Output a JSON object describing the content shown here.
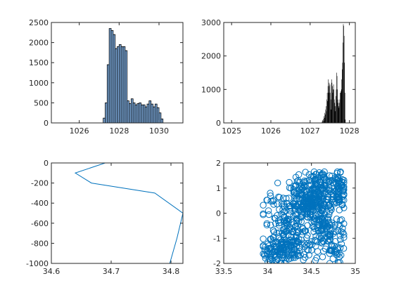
{
  "chart_data": [
    {
      "type": "bar",
      "title": "",
      "xlabel": "",
      "ylabel": "",
      "xlim": [
        1024.6,
        1031.2
      ],
      "ylim": [
        0,
        2500
      ],
      "xticks": [
        1026,
        1028,
        1030
      ],
      "yticks": [
        0,
        500,
        1000,
        1500,
        2000,
        2500
      ],
      "grid": false,
      "bar_color": "#7aa6d6",
      "edge_color": "#000000",
      "bin_width": 0.1,
      "bin_start": 1027.2,
      "values": [
        120,
        500,
        1450,
        2350,
        2300,
        2200,
        1850,
        1900,
        1950,
        1900,
        1900,
        1800,
        550,
        480,
        600,
        500,
        450,
        480,
        500,
        450,
        450,
        400,
        470,
        550,
        470,
        400,
        470,
        380,
        250,
        100
      ]
    },
    {
      "type": "bar",
      "title": "",
      "xlabel": "",
      "ylabel": "",
      "xlim": [
        1024.8,
        1028.15
      ],
      "ylim": [
        0,
        3000
      ],
      "xticks": [
        1025,
        1026,
        1027,
        1028
      ],
      "yticks": [
        0,
        1000,
        2000,
        3000
      ],
      "grid": false,
      "bar_color": "#000000",
      "bin_width": 0.01,
      "bin_start": 1027.3,
      "values": [
        40,
        80,
        50,
        120,
        60,
        200,
        150,
        300,
        250,
        400,
        500,
        350,
        700,
        900,
        650,
        1100,
        1300,
        900,
        1200,
        1100,
        1150,
        900,
        700,
        400,
        1300,
        1200,
        1100,
        900,
        1000,
        1150,
        1000,
        700,
        600,
        500,
        350,
        800,
        1000,
        1500,
        1400,
        1000,
        700,
        600,
        500,
        450,
        600,
        700,
        900,
        900,
        950,
        1000,
        1300,
        1600,
        1800,
        2400,
        2950,
        2900,
        2600,
        1800,
        900,
        100
      ]
    },
    {
      "type": "line",
      "title": "",
      "xlabel": "",
      "ylabel": "",
      "xlim": [
        34.6,
        34.82
      ],
      "ylim": [
        -1000,
        0
      ],
      "xticks": [
        34.6,
        34.7,
        34.8
      ],
      "yticks": [
        0,
        -200,
        -400,
        -600,
        -800,
        -1000
      ],
      "grid": false,
      "color": "#0072bd",
      "x": [
        34.69,
        34.64,
        34.667,
        34.773,
        34.82,
        34.81,
        34.798
      ],
      "y": [
        0,
        -100,
        -200,
        -300,
        -500,
        -750,
        -1000
      ]
    },
    {
      "type": "scatter",
      "title": "",
      "xlabel": "",
      "ylabel": "",
      "xlim": [
        33.5,
        35
      ],
      "ylim": [
        -2,
        2
      ],
      "xticks": [
        33.5,
        34,
        34.5,
        35
      ],
      "yticks": [
        2,
        1,
        0,
        -1,
        -2
      ],
      "grid": false,
      "color": "#0072bd",
      "marker": "circle",
      "clusters": [
        {
          "cx": 34.05,
          "cy": 0.45,
          "sx": 0.05,
          "sy": 0.25,
          "n": 10
        },
        {
          "cx": 34.1,
          "cy": -1.6,
          "sx": 0.08,
          "sy": 0.25,
          "n": 60
        },
        {
          "cx": 34.2,
          "cy": -0.6,
          "sx": 0.12,
          "sy": 0.5,
          "n": 110
        },
        {
          "cx": 34.3,
          "cy": -1.4,
          "sx": 0.15,
          "sy": 0.3,
          "n": 100
        },
        {
          "cx": 34.5,
          "cy": 0.3,
          "sx": 0.12,
          "sy": 0.3,
          "n": 130
        },
        {
          "cx": 34.4,
          "cy": 0.9,
          "sx": 0.1,
          "sy": 0.3,
          "n": 60
        },
        {
          "cx": 34.6,
          "cy": 1.1,
          "sx": 0.08,
          "sy": 0.3,
          "n": 90
        },
        {
          "cx": 34.65,
          "cy": -0.6,
          "sx": 0.12,
          "sy": 0.4,
          "n": 110
        },
        {
          "cx": 34.8,
          "cy": 0.9,
          "sx": 0.05,
          "sy": 0.4,
          "n": 90
        },
        {
          "cx": 34.75,
          "cy": -1.5,
          "sx": 0.05,
          "sy": 0.25,
          "n": 30
        },
        {
          "cx": 34.38,
          "cy": 0.3,
          "sx": 0.1,
          "sy": 0.15,
          "n": 50
        }
      ]
    }
  ]
}
